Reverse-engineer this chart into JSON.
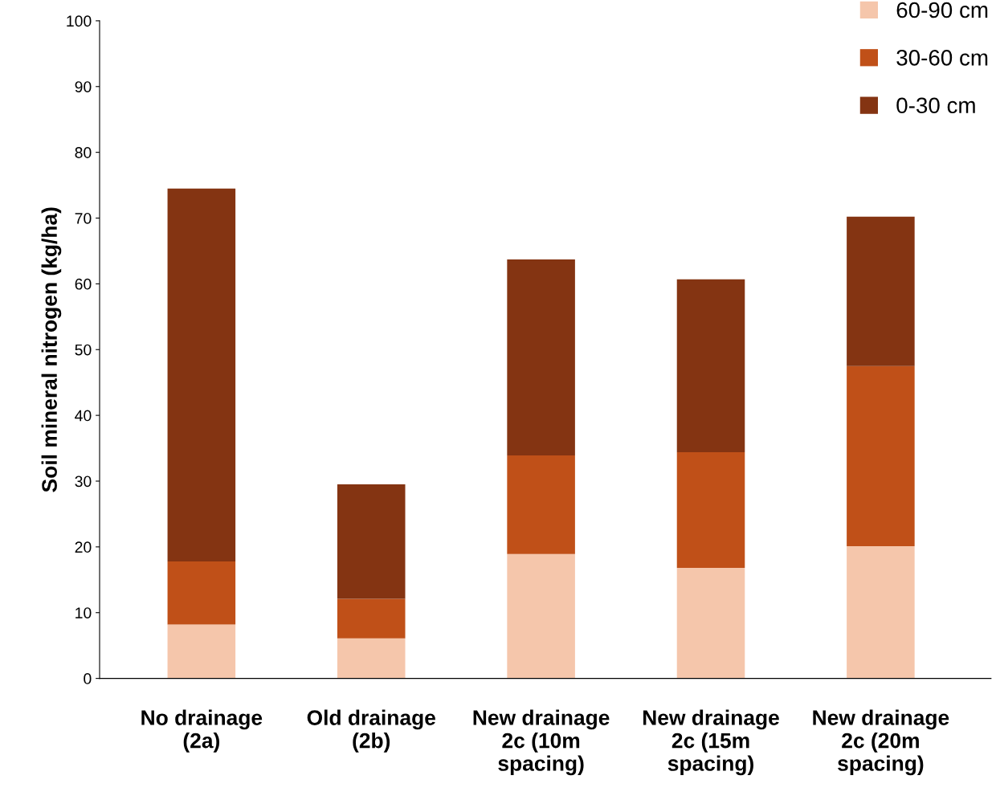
{
  "chart_data": {
    "type": "bar",
    "stacked": true,
    "ylabel": "Soil mineral nitrogen (kg/ha)",
    "categories": [
      "No drainage\n(2a)",
      "Old drainage\n(2b)",
      "New drainage\n2c (10m\nspacing)",
      "New drainage\n2c (15m\nspacing)",
      "New drainage\n2c (20m\nspacing)"
    ],
    "series": [
      {
        "name": "60-90 cm",
        "color": "#f5c6ab",
        "values": [
          8.2,
          6.1,
          18.9,
          16.8,
          20.1
        ]
      },
      {
        "name": "30-60 cm",
        "color": "#c05018",
        "values": [
          9.6,
          6.0,
          15.0,
          17.6,
          27.4
        ]
      },
      {
        "name": "0-30 cm",
        "color": "#843412",
        "values": [
          56.7,
          17.4,
          29.8,
          26.3,
          22.7
        ]
      }
    ],
    "ylim": [
      0,
      100
    ],
    "yticks": [
      0,
      10,
      20,
      30,
      40,
      50,
      60,
      70,
      80,
      90,
      100
    ],
    "grid": false,
    "legend": "top right"
  }
}
